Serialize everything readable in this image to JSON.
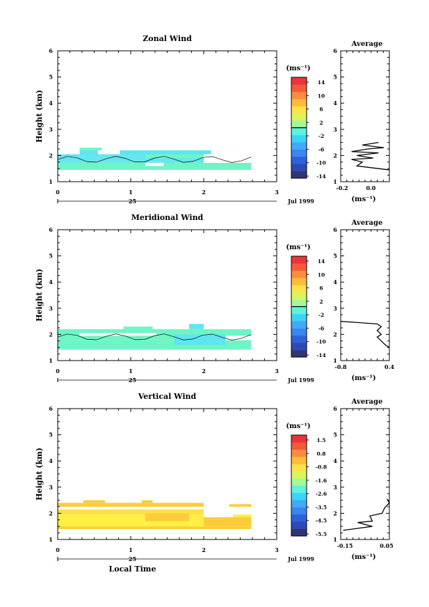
{
  "page": {
    "date_label": "Jul 1999",
    "date_tick": "25"
  },
  "panels": [
    {
      "title": "Zonal Wind",
      "cbar_unit": "(ms⁻¹)",
      "cbar_labels": [
        "14",
        "10",
        "6",
        "2",
        "-2",
        "-6",
        "-10",
        "-14"
      ],
      "avg_title": "Average",
      "avg_unit": "(ms⁻¹)",
      "avg_ticks": [
        "-0.2",
        "0.0"
      ]
    },
    {
      "title": "Meridional Wind",
      "cbar_unit": "(ms⁻¹)",
      "cbar_labels": [
        "14",
        "10",
        "6",
        "2",
        "-2",
        "-6",
        "-10",
        "-14"
      ],
      "avg_title": "Average",
      "avg_unit": "(ms⁻¹)",
      "avg_ticks": [
        "-0.8",
        "0.4"
      ]
    },
    {
      "title": "Vertical Wind",
      "cbar_unit": "(ms⁻¹)",
      "cbar_labels": [
        "1.5",
        "0.8",
        "-0.8",
        "-1.6",
        "-2.6",
        "-3.5",
        "-4.5",
        "-5.5"
      ],
      "avg_title": "Average",
      "avg_unit": "(ms⁻¹)",
      "avg_ticks": [
        "-0.15",
        "0.05"
      ]
    }
  ],
  "chart_data": [
    {
      "type": "heatmap",
      "title": "Zonal Wind",
      "ylabel": "Height (km)",
      "xlim": [
        0,
        3
      ],
      "ylim": [
        1,
        6
      ],
      "xticks": [
        0,
        1,
        2,
        3
      ],
      "yticks": [
        1,
        2,
        3,
        4,
        5,
        6
      ],
      "colorbar_ticks": [
        14,
        10,
        6,
        2,
        -2,
        -6,
        -10,
        -14
      ],
      "contour_levels": [
        0
      ],
      "data_extent": {
        "x": [
          0,
          2.65
        ],
        "height": [
          1.4,
          2.3
        ]
      },
      "cells": [
        {
          "x0": 0.0,
          "x1": 2.65,
          "y0": 1.45,
          "y1": 1.72,
          "color": "#6ef5c4"
        },
        {
          "x0": 0.0,
          "x1": 2.0,
          "y0": 1.72,
          "y1": 2.05,
          "color": "#66e6ee"
        },
        {
          "x0": 0.3,
          "x1": 2.1,
          "y0": 2.05,
          "y1": 2.2,
          "color": "#5fe4f2"
        },
        {
          "x0": 2.3,
          "x1": 2.5,
          "y0": 2.2,
          "y1": 2.3,
          "color": "#6ef5c4"
        },
        {
          "x0": 0.3,
          "x1": 0.6,
          "y0": 2.2,
          "y1": 2.3,
          "color": "#6ef5c4"
        },
        {
          "x0": 1.2,
          "x1": 2.0,
          "y0": 1.9,
          "y1": 2.05,
          "color": "#6ef5c4"
        }
      ],
      "gaps": [
        {
          "x0": 0.55,
          "x1": 0.85,
          "y0": 2.05,
          "y1": 2.2
        },
        {
          "x0": 1.2,
          "x1": 1.45,
          "y0": 1.6,
          "y1": 1.72
        },
        {
          "x0": 2.1,
          "x1": 2.65,
          "y0": 1.72,
          "y1": 2.3
        }
      ]
    },
    {
      "type": "heatmap",
      "title": "Meridional Wind",
      "ylabel": "Height (km)",
      "xlim": [
        0,
        3
      ],
      "ylim": [
        1,
        6
      ],
      "xticks": [
        0,
        1,
        2,
        3
      ],
      "yticks": [
        1,
        2,
        3,
        4,
        5,
        6
      ],
      "colorbar_ticks": [
        14,
        10,
        6,
        2,
        -2,
        -6,
        -10,
        -14
      ],
      "contour_levels": [
        0
      ],
      "data_extent": {
        "x": [
          0,
          2.65
        ],
        "height": [
          1.4,
          2.4
        ]
      },
      "cells": [
        {
          "x0": 0.0,
          "x1": 2.65,
          "y0": 1.42,
          "y1": 1.78,
          "color": "#6ef5c4"
        },
        {
          "x0": 0.0,
          "x1": 2.65,
          "y0": 1.78,
          "y1": 2.2,
          "color": "#6ef5c4"
        },
        {
          "x0": 1.6,
          "x1": 2.3,
          "y0": 1.6,
          "y1": 2.0,
          "color": "#5fe4f2"
        },
        {
          "x0": 1.8,
          "x1": 2.0,
          "y0": 2.2,
          "y1": 2.4,
          "color": "#5fe4f2"
        },
        {
          "x0": 0.9,
          "x1": 1.3,
          "y0": 2.2,
          "y1": 2.3,
          "color": "#6ef5c4"
        }
      ],
      "gaps": [
        {
          "x0": 0.3,
          "x1": 0.95,
          "y0": 1.95,
          "y1": 2.05
        },
        {
          "x0": 0.95,
          "x1": 1.35,
          "y0": 1.95,
          "y1": 2.05
        },
        {
          "x0": 2.3,
          "x1": 2.65,
          "y0": 1.78,
          "y1": 1.95
        }
      ]
    },
    {
      "type": "heatmap",
      "title": "Vertical Wind",
      "xlabel": "Local Time",
      "ylabel": "Height (km)",
      "xlim": [
        0,
        3
      ],
      "ylim": [
        1,
        6
      ],
      "xticks": [
        0,
        1,
        2,
        3
      ],
      "yticks": [
        1,
        2,
        3,
        4,
        5,
        6
      ],
      "colorbar_ticks": [
        1.5,
        0.8,
        -0.8,
        -1.6,
        -2.6,
        -3.5,
        -4.5,
        -5.5
      ],
      "data_extent": {
        "x": [
          0,
          2.65
        ],
        "height": [
          1.4,
          2.5
        ]
      },
      "cells": [
        {
          "x0": 0.0,
          "x1": 2.65,
          "y0": 1.4,
          "y1": 1.5,
          "color": "#fccd3a"
        },
        {
          "x0": 0.0,
          "x1": 2.65,
          "y0": 1.5,
          "y1": 1.95,
          "color": "#fdf040"
        },
        {
          "x0": 0.0,
          "x1": 2.0,
          "y0": 1.95,
          "y1": 2.15,
          "color": "#fde04a"
        },
        {
          "x0": 0.0,
          "x1": 2.0,
          "y0": 2.25,
          "y1": 2.4,
          "color": "#fccd3a"
        },
        {
          "x0": 0.35,
          "x1": 0.65,
          "y0": 2.4,
          "y1": 2.5,
          "color": "#fccd3a"
        },
        {
          "x0": 1.15,
          "x1": 1.3,
          "y0": 2.4,
          "y1": 2.5,
          "color": "#fccd3a"
        },
        {
          "x0": 2.35,
          "x1": 2.65,
          "y0": 2.25,
          "y1": 2.35,
          "color": "#fccd3a"
        },
        {
          "x0": 1.2,
          "x1": 1.8,
          "y0": 1.7,
          "y1": 2.0,
          "color": "#fccd3a"
        },
        {
          "x0": 2.0,
          "x1": 2.65,
          "y0": 1.5,
          "y1": 1.85,
          "color": "#fccd3a"
        }
      ],
      "gaps": [
        {
          "x0": 0.0,
          "x1": 2.0,
          "y0": 2.15,
          "y1": 2.25
        },
        {
          "x0": 2.0,
          "x1": 2.4,
          "y0": 1.85,
          "y1": 2.2
        }
      ]
    }
  ],
  "avg_profiles": [
    {
      "type": "line",
      "title": "Average",
      "xlabel": "(ms⁻¹)",
      "xlim": [
        -0.3,
        0.15
      ],
      "ylim": [
        1,
        6
      ],
      "x": [
        0.15,
        0.05,
        -0.15,
        -0.1,
        -0.2,
        0.0,
        -0.15,
        0.05,
        -0.2,
        -0.05,
        0.1,
        -0.1,
        0.05
      ],
      "y": [
        1.45,
        1.5,
        1.6,
        1.75,
        1.85,
        1.9,
        2.0,
        2.1,
        2.15,
        2.25,
        2.3,
        2.4,
        2.5
      ]
    },
    {
      "type": "line",
      "title": "Average",
      "xlabel": "(ms⁻¹)",
      "xlim": [
        -0.8,
        0.4
      ],
      "ylim": [
        1,
        6
      ],
      "x": [
        0.4,
        0.3,
        0.2,
        0.1,
        0.2,
        0.1,
        0.2,
        0.1,
        -0.8
      ],
      "y": [
        1.5,
        1.6,
        1.75,
        1.9,
        2.0,
        2.15,
        2.3,
        2.4,
        2.5
      ]
    },
    {
      "type": "line",
      "title": "Average",
      "xlabel": "(ms⁻¹)",
      "xlim": [
        -0.15,
        0.05
      ],
      "ylim": [
        1,
        6
      ],
      "x": [
        -0.14,
        -0.02,
        -0.08,
        -0.02,
        -0.03,
        0.02,
        0.03,
        0.05,
        0.04
      ],
      "y": [
        1.35,
        1.5,
        1.65,
        1.7,
        1.9,
        2.0,
        2.2,
        2.4,
        2.55
      ]
    }
  ]
}
